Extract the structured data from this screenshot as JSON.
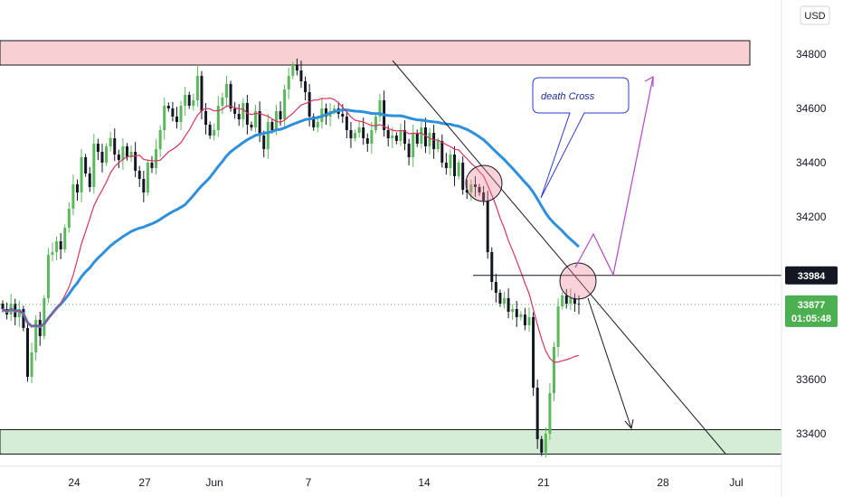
{
  "chart_data": {
    "type": "candlestick",
    "currency": "USD",
    "y_ticks": [
      33400,
      33600,
      33800,
      34000,
      34200,
      34400,
      34600,
      34800
    ],
    "y_tick_labels": [
      "33400",
      "33600",
      "",
      "",
      "34200",
      "34400",
      "34600",
      "34800"
    ],
    "x_tick_labels": [
      "24",
      "27",
      "Jun",
      "7",
      "14",
      "21",
      "28",
      "Jul"
    ],
    "ylim": [
      33300,
      34960
    ],
    "grid": false,
    "annotation": "death Cross",
    "price_tags": {
      "level": {
        "value": 33984,
        "label": "33984"
      },
      "current": {
        "value": 33877,
        "label": "33877",
        "countdown": "01:05:48"
      }
    },
    "zones": {
      "resistance": {
        "low": 34760,
        "high": 34850
      },
      "support": {
        "low": 33325,
        "high": 33415
      }
    },
    "colors": {
      "up": "#5cb85c",
      "down": "#131722",
      "ma_slow": "#2e8fdc",
      "ma_fast": "#d9345f",
      "resistance_fill": "#f8d0d3",
      "support_fill": "#d5ecd5",
      "level_tag_bg": "#131722",
      "current_tag_bg": "#4caf50",
      "annotation_border": "#2b3bd6",
      "path_projection": "#b347c7"
    },
    "series": [
      {
        "values": [
          33860,
          33840,
          33880,
          33830,
          33860,
          33790,
          33610,
          33700,
          33820,
          33760,
          33900,
          34060,
          34070,
          34110,
          34080,
          34160,
          34230,
          34320,
          34290,
          34420,
          34360,
          34310,
          34470,
          34440,
          34400,
          34460,
          34490,
          34430,
          34410,
          34460,
          34420,
          34440,
          34370,
          34340,
          34290,
          34400,
          34380,
          34450,
          34520,
          34610,
          34600,
          34570,
          34550,
          34610,
          34650,
          34610,
          34630,
          34720,
          34590,
          34540,
          34500,
          34520,
          34610,
          34640,
          34690,
          34600,
          34580,
          34560,
          34620,
          34540,
          34530,
          34590,
          34500,
          34450,
          34550,
          34520,
          34590,
          34560,
          34670,
          34720,
          34760,
          34740,
          34700,
          34660,
          34570,
          34530,
          34550,
          34600,
          34570,
          34590,
          34600,
          34580,
          34570,
          34520,
          34490,
          34510,
          34530,
          34490,
          34470,
          34520,
          34570,
          34630,
          34520,
          34490,
          34500,
          34480,
          34520,
          34470,
          34420,
          34510,
          34470,
          34530,
          34460,
          34510,
          34450,
          34480,
          34400,
          34380,
          34430,
          34350,
          34400,
          34300,
          34290,
          34320,
          34310,
          34290,
          34260,
          34070,
          33960,
          33920,
          33880,
          33900,
          33850,
          33860,
          33830,
          33840,
          33800,
          33830,
          33570,
          33380,
          33330,
          33400,
          33550,
          33720,
          33870,
          33910,
          33880,
          33900,
          33880,
          33877
        ]
      }
    ]
  }
}
